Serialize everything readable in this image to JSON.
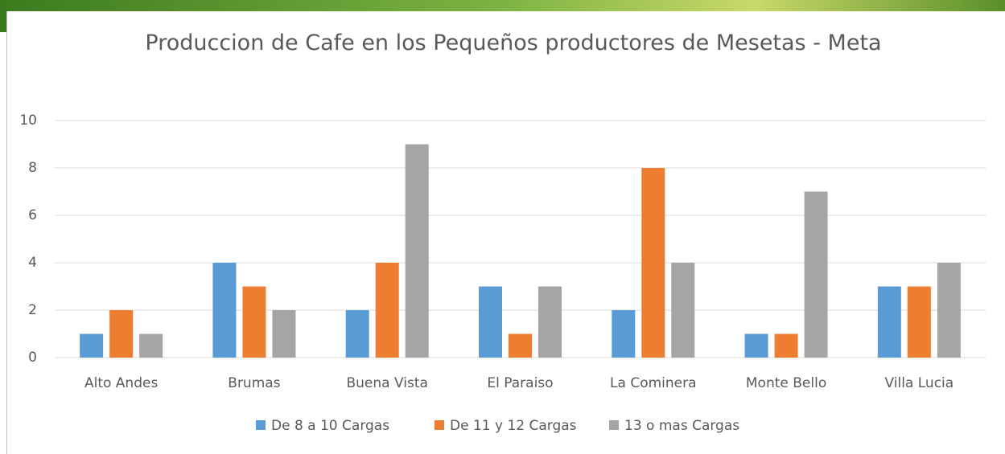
{
  "chart_data": {
    "type": "bar",
    "title": "Produccion de Cafe en los Pequeños productores de Mesetas - Meta",
    "categories": [
      "Alto Andes",
      "Brumas",
      "Buena Vista",
      "El Paraiso",
      "La Cominera",
      "Monte Bello",
      "Villa Lucia"
    ],
    "series": [
      {
        "name": "De 8 a 10 Cargas",
        "color": "#5b9bd5",
        "values": [
          1,
          4,
          2,
          3,
          2,
          1,
          3
        ]
      },
      {
        "name": "De 11  y 12 Cargas",
        "color": "#ed7d31",
        "values": [
          2,
          3,
          4,
          1,
          8,
          1,
          3
        ]
      },
      {
        "name": "13 o mas Cargas",
        "color": "#a5a5a5",
        "values": [
          1,
          2,
          9,
          3,
          4,
          7,
          4
        ]
      }
    ],
    "ylim": [
      0,
      10
    ],
    "yticks": [
      0,
      2,
      4,
      6,
      8,
      10
    ],
    "grid": true,
    "legend": "bottom"
  }
}
